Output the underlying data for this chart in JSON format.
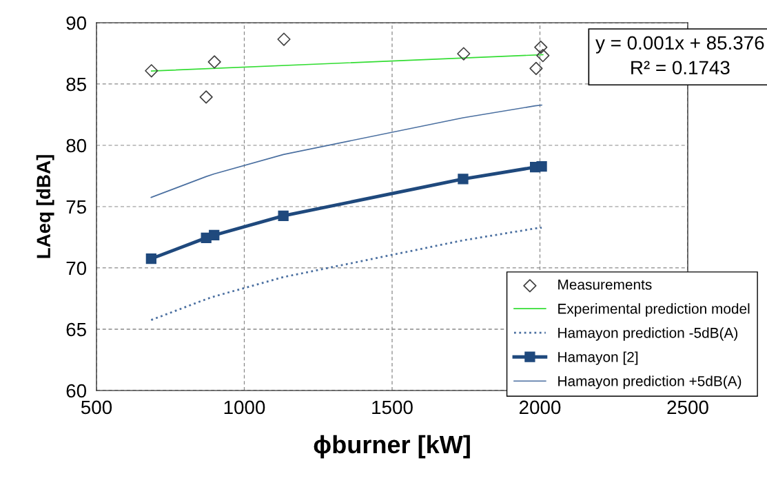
{
  "chart_data": {
    "type": "line",
    "xlabel": "ϕburner [kW]",
    "ylabel": "LAeq [dBA]",
    "xlim": [
      500,
      2500
    ],
    "xticks": [
      500,
      1000,
      1500,
      2000,
      2500
    ],
    "ylim": [
      60,
      90
    ],
    "yticks": [
      60,
      65,
      70,
      75,
      80,
      85,
      90
    ],
    "grid": true,
    "legend": "bottom right",
    "annotations": [
      "y = 0.001x + 85.376\nR² = 0.1743"
    ],
    "series": [
      {
        "name": "Measurements",
        "type": "scatter",
        "marker": "diamond",
        "color": "#404040",
        "x": [
          686,
          871,
          899,
          1134,
          1742,
          1987,
          2003,
          2010
        ],
        "values": [
          86.08,
          83.94,
          86.8,
          88.65,
          87.47,
          86.27,
          88.0,
          87.32
        ]
      },
      {
        "name": "Experimental prediction model",
        "type": "line",
        "line_style": "solid",
        "color": "#33dd33",
        "x": [
          686,
          2010
        ],
        "values": [
          86.06,
          87.39
        ]
      },
      {
        "name": "Hamayon prediction -5dB(A)",
        "type": "line",
        "line_style": "dotted",
        "color": "#4a6fa0",
        "x": [
          685,
          871,
          898,
          1132,
          1740,
          1984,
          2006
        ],
        "values": [
          65.75,
          67.45,
          67.67,
          69.25,
          72.25,
          73.22,
          73.28
        ]
      },
      {
        "name": "Hamayon [2]",
        "type": "line",
        "line_style": "solid",
        "marker": "square",
        "color": "#1f497d",
        "x": [
          685,
          871,
          898,
          1132,
          1740,
          1984,
          2006
        ],
        "values": [
          70.75,
          72.45,
          72.67,
          74.25,
          77.25,
          78.22,
          78.28
        ]
      },
      {
        "name": "Hamayon prediction +5dB(A)",
        "type": "line",
        "line_style": "solid",
        "color": "#4a6fa0",
        "x": [
          685,
          871,
          898,
          1132,
          1740,
          1984,
          2006
        ],
        "values": [
          75.75,
          77.45,
          77.67,
          79.25,
          82.25,
          83.22,
          83.28
        ]
      }
    ]
  }
}
